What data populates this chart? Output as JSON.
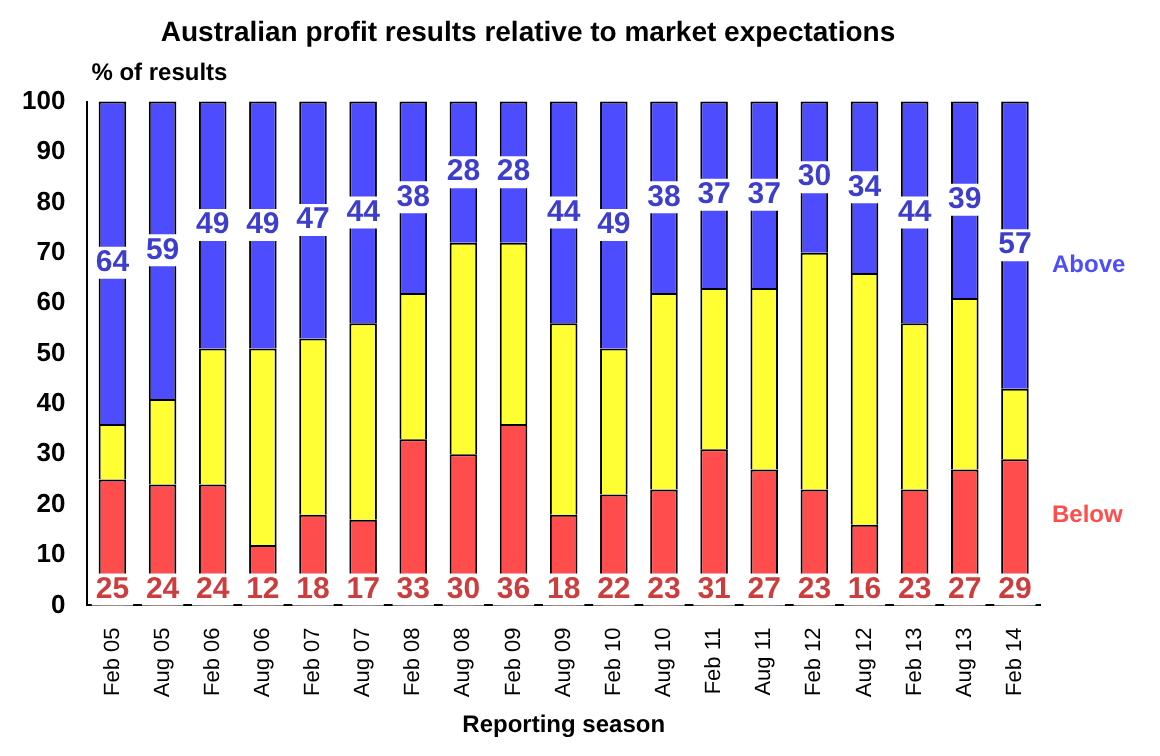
{
  "chart_data": {
    "type": "bar",
    "title": "Australian profit results relative to market expectations",
    "xlabel": "Reporting season",
    "ylabel": "% of results",
    "categories": [
      "Feb 05",
      "Aug 05",
      "Feb 06",
      "Aug 06",
      "Feb 07",
      "Aug 07",
      "Feb 08",
      "Aug 08",
      "Feb 09",
      "Aug 09",
      "Feb 10",
      "Aug 10",
      "Feb 11",
      "Aug 11",
      "Feb 12",
      "Aug 12",
      "Feb 13",
      "Aug 13",
      "Feb 14"
    ],
    "stacked": true,
    "ylim": [
      0,
      100
    ],
    "yticks": [
      0,
      10,
      20,
      30,
      40,
      50,
      60,
      70,
      80,
      90,
      100
    ],
    "grid": false,
    "legend": false,
    "series": [
      {
        "name": "Below",
        "color": "#ff4d4d",
        "values": [
          25,
          24,
          24,
          12,
          18,
          17,
          33,
          30,
          36,
          18,
          22,
          23,
          31,
          27,
          23,
          16,
          23,
          27,
          29
        ],
        "value_labels": [
          "25",
          "24",
          "24",
          "12",
          "18",
          "17",
          "33",
          "30",
          "36",
          "18",
          "22",
          "23",
          "31",
          "27",
          "23",
          "16",
          "23",
          "27",
          "29"
        ]
      },
      {
        "color": "#ffff33",
        "values": [
          11,
          17,
          27,
          39,
          35,
          39,
          29,
          42,
          36,
          38,
          29,
          39,
          32,
          36,
          47,
          50,
          33,
          34,
          14
        ]
      },
      {
        "name": "Above",
        "color": "#4d4dff",
        "values": [
          64,
          59,
          49,
          49,
          47,
          44,
          38,
          28,
          28,
          44,
          49,
          38,
          37,
          37,
          30,
          34,
          44,
          39,
          57
        ],
        "value_labels": [
          "64",
          "59",
          "49",
          "49",
          "47",
          "44",
          "38",
          "28",
          "28",
          "44",
          "49",
          "38",
          "37",
          "37",
          "30",
          "34",
          "44",
          "39",
          "57"
        ]
      }
    ]
  }
}
